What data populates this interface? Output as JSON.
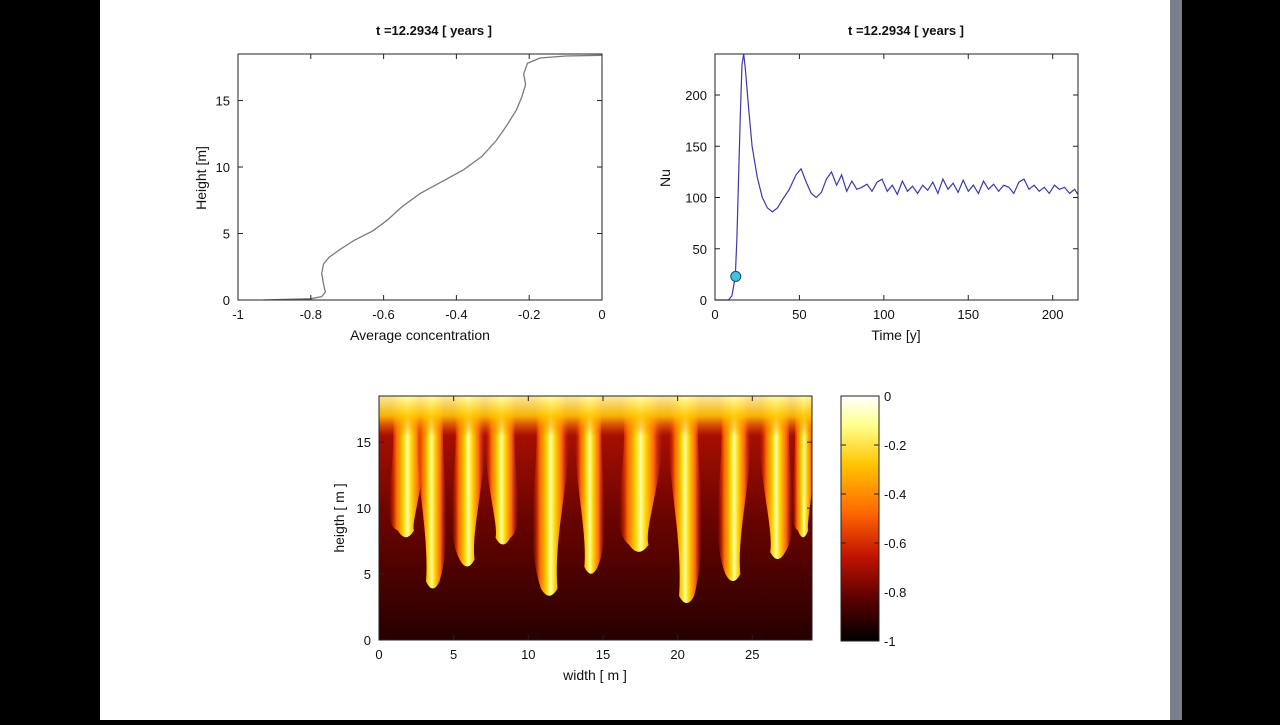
{
  "colors": {
    "background": "#000000",
    "figure_bg": "#ffffff",
    "line_profile": "#7a7a7a",
    "line_nu": "#3a3aa8",
    "marker": "#3fc3e0",
    "colormap": [
      "#000000",
      "#5a0000",
      "#c31400",
      "#ff6600",
      "#ffc400",
      "#ffff8c",
      "#ffffff"
    ]
  },
  "chart_data": [
    {
      "type": "line",
      "title": "t =12.2934        [ years ]",
      "xlabel": "Average concentration",
      "ylabel": "Height [m]",
      "xlim": [
        -1,
        0
      ],
      "ylim": [
        0,
        18.5
      ],
      "xticks": [
        -1,
        -0.8,
        -0.6,
        -0.4,
        -0.2,
        0
      ],
      "xtick_labels": [
        "-1",
        "-0.8",
        "-0.6",
        "-0.4",
        "-0.2",
        "0"
      ],
      "yticks": [
        0,
        5,
        10,
        15
      ],
      "ytick_labels": [
        "0",
        "5",
        "10",
        "15"
      ],
      "grid": false,
      "series": [
        {
          "points": [
            [
              -0.93,
              0.0
            ],
            [
              -0.86,
              0.05
            ],
            [
              -0.8,
              0.1
            ],
            [
              -0.77,
              0.25
            ],
            [
              -0.76,
              0.6
            ],
            [
              -0.765,
              1.2
            ],
            [
              -0.77,
              2.0
            ],
            [
              -0.765,
              2.7
            ],
            [
              -0.75,
              3.2
            ],
            [
              -0.72,
              3.8
            ],
            [
              -0.68,
              4.5
            ],
            [
              -0.63,
              5.2
            ],
            [
              -0.59,
              6.0
            ],
            [
              -0.55,
              7.0
            ],
            [
              -0.5,
              8.0
            ],
            [
              -0.44,
              8.9
            ],
            [
              -0.38,
              9.8
            ],
            [
              -0.33,
              10.8
            ],
            [
              -0.29,
              12.0
            ],
            [
              -0.26,
              13.2
            ],
            [
              -0.235,
              14.3
            ],
            [
              -0.22,
              15.3
            ],
            [
              -0.21,
              16.2
            ],
            [
              -0.215,
              17.0
            ],
            [
              -0.205,
              17.8
            ],
            [
              -0.17,
              18.2
            ],
            [
              -0.1,
              18.35
            ],
            [
              0.0,
              18.4
            ]
          ]
        }
      ]
    },
    {
      "type": "line",
      "title": "t =12.2934        [ years ]",
      "xlabel": "Time [y]",
      "ylabel": "Nu",
      "xlim": [
        0,
        215
      ],
      "ylim": [
        0,
        240
      ],
      "xticks": [
        0,
        50,
        100,
        150,
        200
      ],
      "xtick_labels": [
        "0",
        "50",
        "100",
        "150",
        "200"
      ],
      "yticks": [
        0,
        50,
        100,
        150,
        200
      ],
      "ytick_labels": [
        "0",
        "50",
        "100",
        "150",
        "200"
      ],
      "grid": false,
      "marker": {
        "x": 12.3,
        "y": 23
      },
      "series": [
        {
          "points": [
            [
              0,
              0
            ],
            [
              8,
              0
            ],
            [
              10,
              4
            ],
            [
              12,
              23
            ],
            [
              13,
              60
            ],
            [
              14,
              120
            ],
            [
              15,
              180
            ],
            [
              16,
              230
            ],
            [
              17,
              240
            ],
            [
              18,
              225
            ],
            [
              20,
              185
            ],
            [
              22,
              150
            ],
            [
              25,
              120
            ],
            [
              28,
              100
            ],
            [
              31,
              90
            ],
            [
              34,
              86
            ],
            [
              37,
              90
            ],
            [
              40,
              98
            ],
            [
              44,
              108
            ],
            [
              48,
              122
            ],
            [
              51,
              128
            ],
            [
              54,
              115
            ],
            [
              57,
              104
            ],
            [
              60,
              100
            ],
            [
              63,
              105
            ],
            [
              66,
              118
            ],
            [
              69,
              125
            ],
            [
              72,
              112
            ],
            [
              75,
              122
            ],
            [
              78,
              106
            ],
            [
              81,
              116
            ],
            [
              84,
              108
            ],
            [
              87,
              110
            ],
            [
              90,
              113
            ],
            [
              93,
              106
            ],
            [
              96,
              115
            ],
            [
              99,
              118
            ],
            [
              102,
              106
            ],
            [
              105,
              112
            ],
            [
              108,
              103
            ],
            [
              111,
              116
            ],
            [
              114,
              106
            ],
            [
              117,
              111
            ],
            [
              120,
              104
            ],
            [
              123,
              112
            ],
            [
              126,
              107
            ],
            [
              129,
              115
            ],
            [
              132,
              104
            ],
            [
              135,
              118
            ],
            [
              138,
              108
            ],
            [
              141,
              114
            ],
            [
              144,
              105
            ],
            [
              147,
              117
            ],
            [
              150,
              106
            ],
            [
              153,
              112
            ],
            [
              156,
              104
            ],
            [
              159,
              116
            ],
            [
              162,
              108
            ],
            [
              165,
              113
            ],
            [
              168,
              106
            ],
            [
              171,
              112
            ],
            [
              174,
              110
            ],
            [
              177,
              104
            ],
            [
              180,
              115
            ],
            [
              183,
              118
            ],
            [
              186,
              108
            ],
            [
              189,
              112
            ],
            [
              192,
              106
            ],
            [
              195,
              110
            ],
            [
              198,
              104
            ],
            [
              201,
              112
            ],
            [
              204,
              108
            ],
            [
              207,
              110
            ],
            [
              210,
              104
            ],
            [
              213,
              108
            ],
            [
              215,
              103
            ]
          ]
        }
      ]
    },
    {
      "type": "heatmap",
      "title": "",
      "xlabel": "width [ m ]",
      "ylabel": "heigth [ m ]",
      "xlim": [
        0,
        29
      ],
      "ylim": [
        0,
        18.5
      ],
      "xticks": [
        0,
        5,
        10,
        15,
        20,
        25
      ],
      "xtick_labels": [
        "0",
        "5",
        "10",
        "15",
        "20",
        "25"
      ],
      "yticks": [
        0,
        5,
        10,
        15
      ],
      "ytick_labels": [
        "0",
        "5",
        "10",
        "15"
      ],
      "colorbar": {
        "range": [
          -1,
          0
        ],
        "ticks": [
          0,
          -0.2,
          -0.4,
          -0.6,
          -0.8,
          -1
        ],
        "tick_labels": [
          "0",
          "-0.2",
          "-0.4",
          "-0.6",
          "-0.8",
          "-1"
        ]
      },
      "plumes": [
        {
          "x": 1.8,
          "w": 1.1
        },
        {
          "x": 3.6,
          "w": 0.9
        },
        {
          "x": 5.9,
          "w": 1.0
        },
        {
          "x": 8.3,
          "w": 1.0
        },
        {
          "x": 11.4,
          "w": 1.1
        },
        {
          "x": 14.2,
          "w": 0.9
        },
        {
          "x": 17.4,
          "w": 1.3
        },
        {
          "x": 20.6,
          "w": 1.0
        },
        {
          "x": 23.7,
          "w": 1.0
        },
        {
          "x": 26.7,
          "w": 1.0
        },
        {
          "x": 28.4,
          "w": 0.7
        }
      ]
    }
  ]
}
